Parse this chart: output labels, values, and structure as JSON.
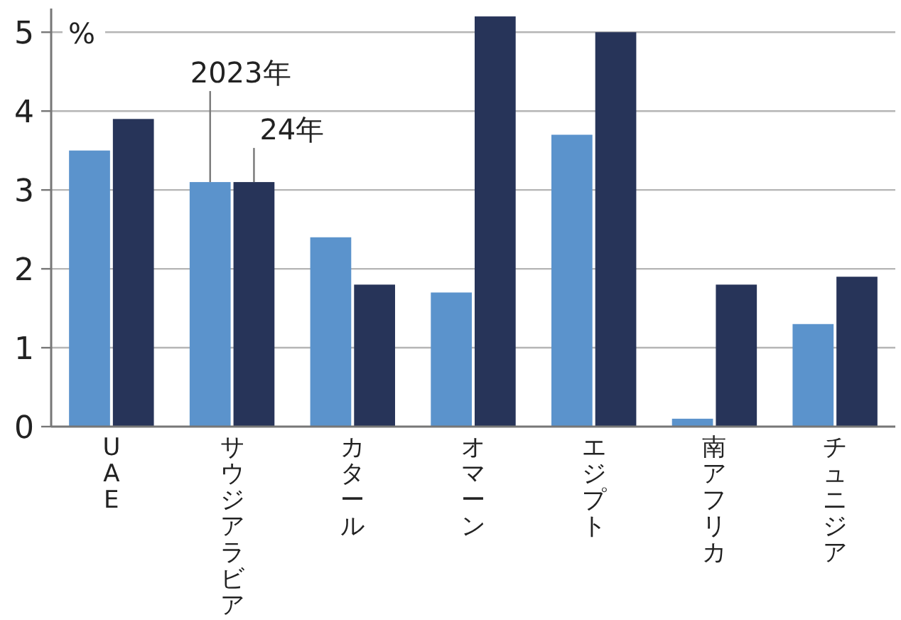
{
  "chart_data": {
    "type": "bar",
    "ylabel": "%",
    "categories": [
      "UAE",
      "サウジアラビア",
      "カタール",
      "オマーン",
      "エジプト",
      "南アフリカ",
      "チュニジア"
    ],
    "series": [
      {
        "name": "2023年",
        "color": "#5b93cc",
        "values": [
          3.5,
          3.1,
          2.4,
          1.7,
          3.7,
          0.1,
          1.3
        ]
      },
      {
        "name": "24年",
        "color": "#273459",
        "values": [
          3.9,
          3.1,
          1.8,
          5.2,
          5.0,
          1.8,
          1.9
        ]
      }
    ],
    "ylim": [
      0,
      5.3
    ],
    "yticks": [
      0,
      1,
      2,
      3,
      4,
      5
    ],
    "grid": "y",
    "legend": false
  }
}
